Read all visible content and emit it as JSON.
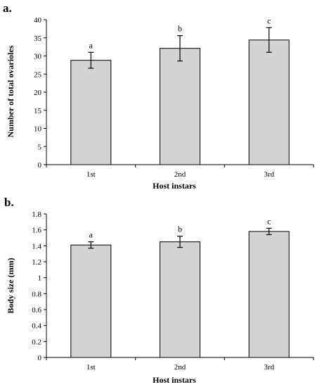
{
  "chart_data": [
    {
      "type": "bar",
      "panel_label": "a.",
      "categories": [
        "1st",
        "2nd",
        "3rd"
      ],
      "values": [
        28.8,
        32.1,
        34.4
      ],
      "errors": [
        2.2,
        3.5,
        3.4
      ],
      "significance": [
        "a",
        "b",
        "c"
      ],
      "xlabel": "Host instars",
      "ylabel": "Number of total ovarioles",
      "ylim": [
        0,
        40
      ],
      "yticks": [
        "0",
        "5",
        "10",
        "15",
        "20",
        "25",
        "30",
        "35",
        "40"
      ],
      "grid": false,
      "bar_color": "#d3d3d3"
    },
    {
      "type": "bar",
      "panel_label": "b.",
      "categories": [
        "1st",
        "2nd",
        "3rd"
      ],
      "values": [
        1.41,
        1.45,
        1.58
      ],
      "errors": [
        0.04,
        0.07,
        0.04
      ],
      "significance": [
        "a",
        "b",
        "c"
      ],
      "xlabel": "Host instars",
      "ylabel": "Body size (mm)",
      "ylim": [
        0,
        1.8
      ],
      "yticks": [
        "0",
        "0.2",
        "0.4",
        "0.6",
        "0.8",
        "1",
        "1.2",
        "1.4",
        "1.6",
        "1.8"
      ],
      "grid": false,
      "bar_color": "#d3d3d3"
    }
  ]
}
